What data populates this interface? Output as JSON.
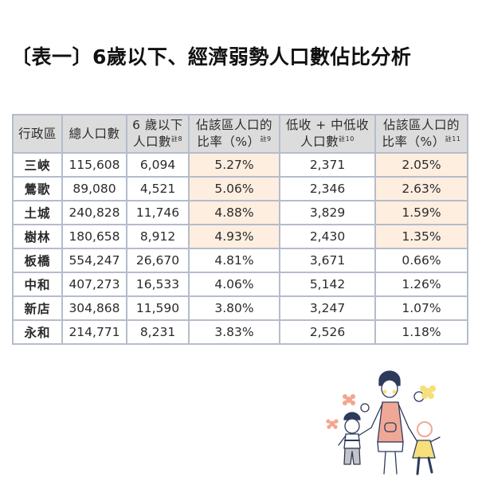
{
  "title": "〔表一〕6歲以下、經濟弱勢人口數佔比分析",
  "table": {
    "headers": [
      {
        "line1": "行政區",
        "line2": "",
        "note": ""
      },
      {
        "line1": "總人口數",
        "line2": "",
        "note": ""
      },
      {
        "line1": "6 歲以下",
        "line2": "人口數",
        "note": "註8"
      },
      {
        "line1": "佔該區人口的",
        "line2": "比率（%）",
        "note": "註9"
      },
      {
        "line1": "低收 + 中低收",
        "line2": "人口數",
        "note": "註10"
      },
      {
        "line1": "佔該區人口的",
        "line2": "比率（%）",
        "note": "註11"
      }
    ],
    "rows": [
      {
        "district": "三峽",
        "total": "115,608",
        "under6": "6,094",
        "under6_pct": "5.27%",
        "low_income": "2,371",
        "low_income_pct": "2.05%",
        "highlight": true
      },
      {
        "district": "鶯歌",
        "total": "89,080",
        "under6": "4,521",
        "under6_pct": "5.06%",
        "low_income": "2,346",
        "low_income_pct": "2.63%",
        "highlight": true
      },
      {
        "district": "土城",
        "total": "240,828",
        "under6": "11,746",
        "under6_pct": "4.88%",
        "low_income": "3,829",
        "low_income_pct": "1.59%",
        "highlight": true
      },
      {
        "district": "樹林",
        "total": "180,658",
        "under6": "8,912",
        "under6_pct": "4.93%",
        "low_income": "2,430",
        "low_income_pct": "1.35%",
        "highlight": true
      },
      {
        "district": "板橋",
        "total": "554,247",
        "under6": "26,670",
        "under6_pct": "4.81%",
        "low_income": "3,671",
        "low_income_pct": "0.66%",
        "highlight": false
      },
      {
        "district": "中和",
        "total": "407,273",
        "under6": "16,533",
        "under6_pct": "4.06%",
        "low_income": "5,142",
        "low_income_pct": "1.26%",
        "highlight": false
      },
      {
        "district": "新店",
        "total": "304,868",
        "under6": "11,590",
        "under6_pct": "3.80%",
        "low_income": "3,247",
        "low_income_pct": "1.07%",
        "highlight": false
      },
      {
        "district": "永和",
        "total": "214,771",
        "under6": "8,231",
        "under6_pct": "3.83%",
        "low_income": "2,526",
        "low_income_pct": "1.18%",
        "highlight": false
      }
    ]
  },
  "colors": {
    "header_bg": "#dcdcdc",
    "highlight_bg": "#fdeee0",
    "border": "#b5bccb"
  },
  "illustration": {
    "icon": "mother-with-two-children-illustration"
  }
}
